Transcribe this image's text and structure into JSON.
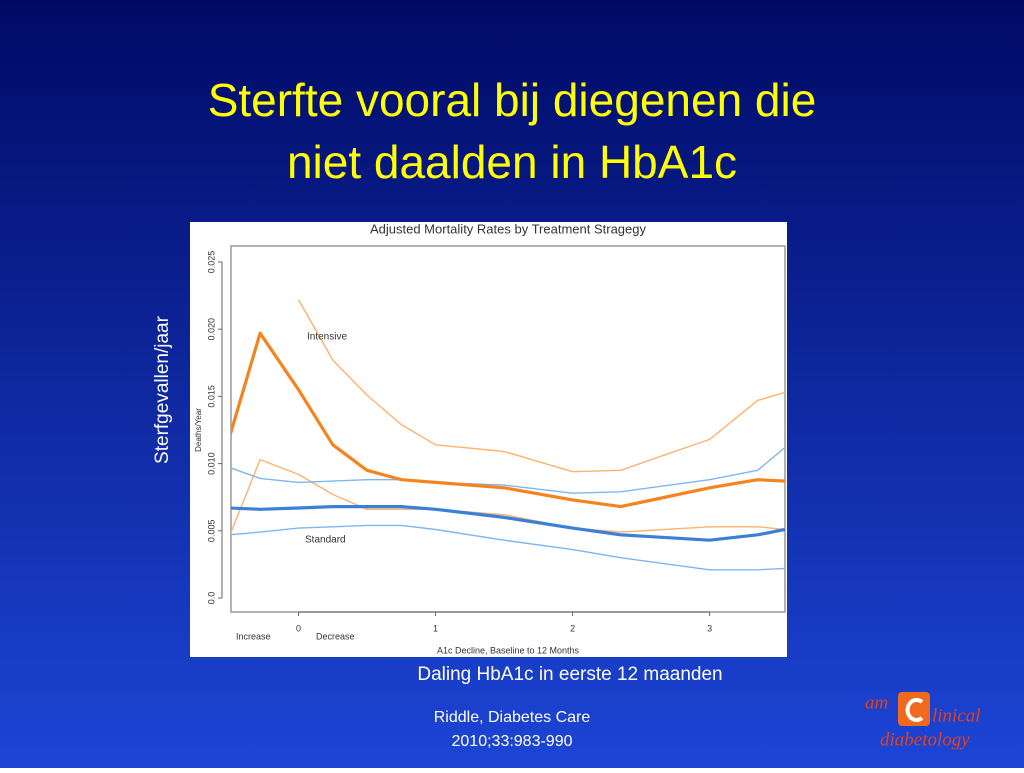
{
  "slide": {
    "title_lines": [
      "Sterfte vooral bij diegenen die",
      "niet daalden in HbA1c"
    ],
    "y_caption": "Sterfgevallen/jaar",
    "x_caption": "Daling HbA1c in eerste 12 maanden",
    "reference_lines": [
      "Riddle, Diabetes Care",
      "2010;33:983-990"
    ],
    "logo": {
      "top": "am",
      "right": "linical",
      "bottom": "diabetology"
    }
  },
  "chart_data": {
    "type": "line",
    "title": "Adjusted Mortality Rates by Treatment Stragegy",
    "x_label": "A1c Decline, Baseline to 12 Months",
    "y_label": "Deaths/Year",
    "annotations": [
      "Increase",
      "Decrease"
    ],
    "x": [
      -0.5,
      -0.28,
      0,
      0.25,
      0.5,
      0.75,
      1,
      1.5,
      2,
      2.35,
      3,
      3.35,
      3.55
    ],
    "xlim": [
      -0.5,
      3.55
    ],
    "xticks": [
      0,
      1,
      2,
      3
    ],
    "ylim": [
      0,
      0.025
    ],
    "yticks": [
      {
        "value": 0,
        "label": "0.0"
      },
      0.005,
      {
        "value": 0.01,
        "label": "0.010"
      },
      0.015,
      {
        "value": 0.02,
        "label": "0.020"
      },
      0.025
    ],
    "series": [
      {
        "color": "#fbb36f",
        "values": [
          null,
          null,
          0.0222,
          0.0177,
          0.0151,
          0.0129,
          0.0114,
          0.0109,
          0.0094,
          0.0095,
          0.0118,
          0.0147,
          0.0153
        ]
      },
      {
        "color": "#fbb36f",
        "values": [
          0.0047,
          0.0103,
          0.0092,
          0.0077,
          0.0066,
          0.0066,
          0.0066,
          0.0062,
          0.0052,
          0.0049,
          0.0053,
          0.0053,
          0.0051
        ]
      },
      {
        "color": "#7db6f0",
        "values": [
          0.0097,
          0.0089,
          0.0086,
          0.0087,
          0.0088,
          0.0088,
          0.0086,
          0.0084,
          0.0078,
          0.0079,
          0.0088,
          0.0095,
          0.0112
        ]
      },
      {
        "color": "#7db6f0",
        "values": [
          0.0047,
          0.0049,
          0.0052,
          0.0053,
          0.0054,
          0.0054,
          0.0051,
          0.0043,
          0.0036,
          0.003,
          0.0021,
          0.0021,
          0.0022
        ]
      },
      {
        "name": "Intensive",
        "color": "#f5841f",
        "values": [
          0.0121,
          0.0197,
          0.0155,
          0.0114,
          0.0095,
          0.0088,
          0.0086,
          0.0082,
          0.0073,
          0.0068,
          0.0082,
          0.0088,
          0.0087
        ]
      },
      {
        "name": "Standard",
        "color": "#3a7fd8",
        "values": [
          0.0067,
          0.0066,
          0.0067,
          0.0068,
          0.0068,
          0.0068,
          0.0066,
          0.006,
          0.0052,
          0.0047,
          0.0043,
          0.0047,
          0.0051
        ]
      }
    ]
  }
}
